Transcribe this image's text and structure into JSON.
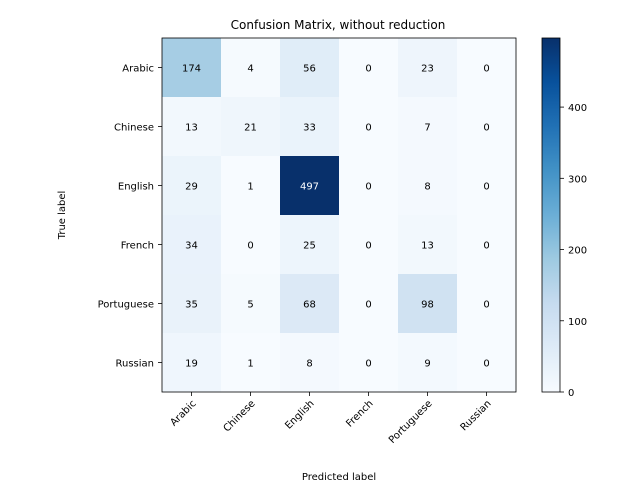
{
  "chart_data": {
    "type": "heatmap",
    "title": "Confusion Matrix, without reduction",
    "xlabel": "Predicted label",
    "ylabel": "True label",
    "x_categories": [
      "Arabic",
      "Chinese",
      "English",
      "French",
      "Portuguese",
      "Russian"
    ],
    "y_categories": [
      "Arabic",
      "Chinese",
      "English",
      "French",
      "Portuguese",
      "Russian"
    ],
    "values": [
      [
        174,
        4,
        56,
        0,
        23,
        0
      ],
      [
        13,
        21,
        33,
        0,
        7,
        0
      ],
      [
        29,
        1,
        497,
        0,
        8,
        0
      ],
      [
        34,
        0,
        25,
        0,
        13,
        0
      ],
      [
        35,
        5,
        68,
        0,
        98,
        0
      ],
      [
        19,
        1,
        8,
        0,
        9,
        0
      ]
    ],
    "colormap": "Blues",
    "color_range": [
      0,
      497
    ],
    "colorbar_ticks": [
      0,
      100,
      200,
      300,
      400
    ],
    "x_tick_rotation_deg": 45
  }
}
